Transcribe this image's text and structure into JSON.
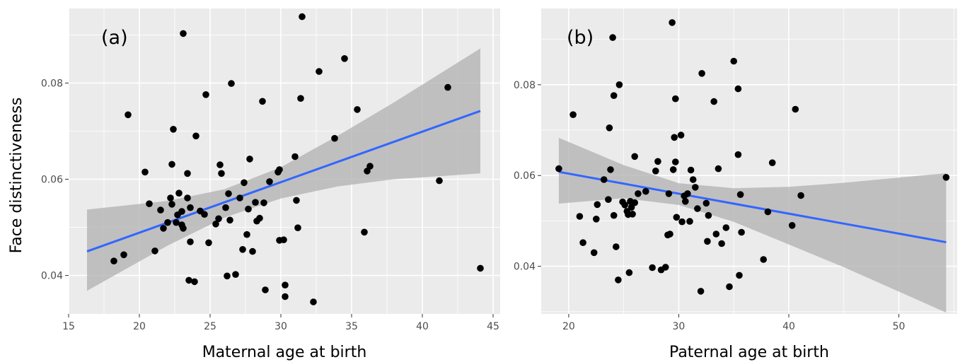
{
  "figure": {
    "ylabel": "Face distinctiveness"
  },
  "colors": {
    "panel_background": "#ebebeb",
    "gridline": "#ffffff",
    "points": "#000000",
    "regression_line": "#3366ff",
    "confidence_band": "#b0b0b0"
  },
  "chart_data": [
    {
      "type": "scatter",
      "panel_label": "(a)",
      "xlabel": "Maternal age at birth",
      "ylabel": "Face distinctiveness",
      "xlim": [
        15,
        45.5
      ],
      "ylim": [
        0.032,
        0.0955
      ],
      "x_ticks": [
        15,
        20,
        25,
        30,
        35,
        40,
        45
      ],
      "x_tick_labels": [
        "15",
        "20",
        "25",
        "30",
        "35",
        "40",
        "45"
      ],
      "y_ticks": [
        0.04,
        0.06,
        0.08
      ],
      "y_tick_labels": [
        "0.04",
        "0.06",
        "0.08"
      ],
      "grid": true,
      "regression": {
        "x": [
          16.3,
          44.1
        ],
        "y": [
          0.045,
          0.0742
        ],
        "band_x": [
          16.3,
          22,
          26,
          30,
          34,
          38,
          44.1
        ],
        "band_lower": [
          0.0368,
          0.0462,
          0.052,
          0.056,
          0.0585,
          0.06,
          0.0612
        ],
        "band_upper": [
          0.0537,
          0.0555,
          0.0579,
          0.0625,
          0.069,
          0.076,
          0.0872
        ]
      },
      "points": [
        [
          18.2,
          0.043
        ],
        [
          18.9,
          0.0443
        ],
        [
          19.2,
          0.0734
        ],
        [
          20.4,
          0.0615
        ],
        [
          20.7,
          0.0549
        ],
        [
          21.1,
          0.0451
        ],
        [
          21.5,
          0.0536
        ],
        [
          21.7,
          0.0498
        ],
        [
          22.0,
          0.051
        ],
        [
          22.2,
          0.0561
        ],
        [
          22.3,
          0.0548
        ],
        [
          22.3,
          0.0631
        ],
        [
          22.4,
          0.0704
        ],
        [
          22.6,
          0.051
        ],
        [
          22.7,
          0.0526
        ],
        [
          22.8,
          0.0571
        ],
        [
          23.0,
          0.0533
        ],
        [
          23.0,
          0.0505
        ],
        [
          23.1,
          0.0903
        ],
        [
          23.1,
          0.0498
        ],
        [
          23.4,
          0.0561
        ],
        [
          23.4,
          0.0612
        ],
        [
          23.5,
          0.039
        ],
        [
          23.6,
          0.047
        ],
        [
          23.6,
          0.0541
        ],
        [
          23.9,
          0.0387
        ],
        [
          24.0,
          0.069
        ],
        [
          24.3,
          0.0534
        ],
        [
          24.6,
          0.0527
        ],
        [
          24.7,
          0.0776
        ],
        [
          24.9,
          0.0468
        ],
        [
          25.4,
          0.0507
        ],
        [
          25.6,
          0.0518
        ],
        [
          25.7,
          0.063
        ],
        [
          25.8,
          0.0612
        ],
        [
          26.1,
          0.0541
        ],
        [
          26.2,
          0.0399
        ],
        [
          26.3,
          0.057
        ],
        [
          26.4,
          0.0515
        ],
        [
          26.5,
          0.0799
        ],
        [
          26.8,
          0.0402
        ],
        [
          27.1,
          0.0561
        ],
        [
          27.3,
          0.0454
        ],
        [
          27.4,
          0.0593
        ],
        [
          27.6,
          0.0485
        ],
        [
          27.7,
          0.0538
        ],
        [
          27.8,
          0.0642
        ],
        [
          28.0,
          0.045
        ],
        [
          28.2,
          0.0552
        ],
        [
          28.3,
          0.0513
        ],
        [
          28.5,
          0.0519
        ],
        [
          28.7,
          0.0762
        ],
        [
          28.8,
          0.0551
        ],
        [
          28.9,
          0.037
        ],
        [
          29.2,
          0.0595
        ],
        [
          29.8,
          0.0615
        ],
        [
          29.9,
          0.062
        ],
        [
          29.9,
          0.0473
        ],
        [
          30.2,
          0.0474
        ],
        [
          30.3,
          0.038
        ],
        [
          30.3,
          0.0356
        ],
        [
          31.0,
          0.0647
        ],
        [
          31.1,
          0.0556
        ],
        [
          31.2,
          0.0499
        ],
        [
          31.4,
          0.0768
        ],
        [
          31.5,
          0.0938
        ],
        [
          32.3,
          0.0345
        ],
        [
          32.7,
          0.0824
        ],
        [
          33.8,
          0.0685
        ],
        [
          34.5,
          0.0851
        ],
        [
          35.4,
          0.0745
        ],
        [
          35.9,
          0.049
        ],
        [
          36.1,
          0.0617
        ],
        [
          36.3,
          0.0627
        ],
        [
          41.2,
          0.0597
        ],
        [
          41.8,
          0.0791
        ],
        [
          44.1,
          0.0415
        ]
      ]
    },
    {
      "type": "scatter",
      "panel_label": "(b)",
      "xlabel": "Paternal age at birth",
      "ylabel": "",
      "xlim": [
        17.5,
        55.3
      ],
      "ylim": [
        0.0295,
        0.0968
      ],
      "x_ticks": [
        20,
        30,
        40,
        50
      ],
      "x_tick_labels": [
        "20",
        "30",
        "40",
        "50"
      ],
      "y_ticks": [
        0.04,
        0.06,
        0.08
      ],
      "y_tick_labels": [
        "0.04",
        "0.06",
        "0.08"
      ],
      "grid": true,
      "regression": {
        "x": [
          19.1,
          54.3
        ],
        "y": [
          0.0608,
          0.0453
        ],
        "band_x": [
          19.1,
          25,
          30,
          35,
          40,
          45,
          54.3
        ],
        "band_lower": [
          0.0538,
          0.055,
          0.0535,
          0.0498,
          0.0448,
          0.0398,
          0.0298
        ],
        "band_upper": [
          0.0683,
          0.0623,
          0.0583,
          0.0572,
          0.0575,
          0.0584,
          0.0605
        ]
      },
      "points": [
        [
          19.1,
          0.0615
        ],
        [
          20.4,
          0.0734
        ],
        [
          21.0,
          0.051
        ],
        [
          21.3,
          0.0452
        ],
        [
          22.3,
          0.043
        ],
        [
          22.5,
          0.0504
        ],
        [
          22.6,
          0.0536
        ],
        [
          23.2,
          0.0591
        ],
        [
          23.6,
          0.0547
        ],
        [
          23.7,
          0.0705
        ],
        [
          23.8,
          0.0613
        ],
        [
          24.0,
          0.0904
        ],
        [
          24.1,
          0.0512
        ],
        [
          24.1,
          0.0776
        ],
        [
          24.3,
          0.0443
        ],
        [
          24.5,
          0.037
        ],
        [
          24.6,
          0.08
        ],
        [
          24.9,
          0.0542
        ],
        [
          25.1,
          0.0535
        ],
        [
          25.3,
          0.0521
        ],
        [
          25.4,
          0.0514
        ],
        [
          25.5,
          0.0386
        ],
        [
          25.6,
          0.0543
        ],
        [
          25.7,
          0.053
        ],
        [
          25.8,
          0.0515
        ],
        [
          26.0,
          0.054
        ],
        [
          26.0,
          0.0642
        ],
        [
          26.3,
          0.056
        ],
        [
          27.0,
          0.0565
        ],
        [
          27.6,
          0.0397
        ],
        [
          27.9,
          0.061
        ],
        [
          28.1,
          0.0631
        ],
        [
          28.4,
          0.0392
        ],
        [
          28.8,
          0.0398
        ],
        [
          29.0,
          0.0469
        ],
        [
          29.1,
          0.056
        ],
        [
          29.2,
          0.0471
        ],
        [
          29.4,
          0.0937
        ],
        [
          29.5,
          0.0613
        ],
        [
          29.6,
          0.0684
        ],
        [
          29.7,
          0.0769
        ],
        [
          29.7,
          0.063
        ],
        [
          29.8,
          0.0508
        ],
        [
          30.2,
          0.0689
        ],
        [
          30.3,
          0.0498
        ],
        [
          30.5,
          0.0555
        ],
        [
          30.6,
          0.0543
        ],
        [
          30.8,
          0.056
        ],
        [
          31.0,
          0.0499
        ],
        [
          31.1,
          0.0612
        ],
        [
          31.3,
          0.0591
        ],
        [
          31.5,
          0.0574
        ],
        [
          31.7,
          0.0527
        ],
        [
          32.0,
          0.0345
        ],
        [
          32.1,
          0.0825
        ],
        [
          32.5,
          0.0539
        ],
        [
          32.6,
          0.0455
        ],
        [
          32.7,
          0.0512
        ],
        [
          33.2,
          0.0763
        ],
        [
          33.4,
          0.0471
        ],
        [
          33.6,
          0.0615
        ],
        [
          33.9,
          0.045
        ],
        [
          34.3,
          0.0485
        ],
        [
          34.6,
          0.0355
        ],
        [
          35.0,
          0.0852
        ],
        [
          35.4,
          0.0791
        ],
        [
          35.4,
          0.0646
        ],
        [
          35.5,
          0.038
        ],
        [
          35.6,
          0.0558
        ],
        [
          35.7,
          0.0475
        ],
        [
          37.7,
          0.0415
        ],
        [
          38.1,
          0.052
        ],
        [
          38.5,
          0.0628
        ],
        [
          40.3,
          0.049
        ],
        [
          40.6,
          0.0746
        ],
        [
          41.1,
          0.0556
        ],
        [
          54.3,
          0.0596
        ]
      ]
    }
  ]
}
